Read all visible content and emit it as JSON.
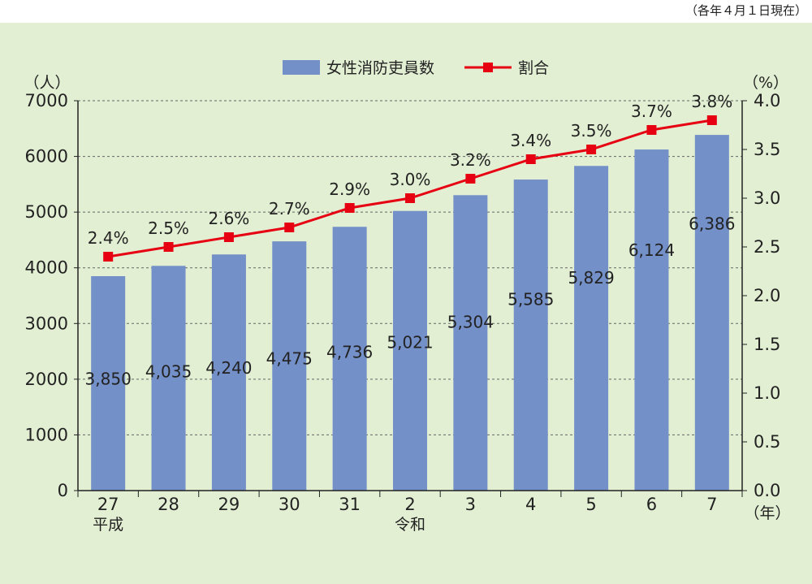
{
  "note": "（各年４月１日現在）",
  "chart_data": {
    "type": "bar",
    "categories": [
      "27",
      "28",
      "29",
      "30",
      "31",
      "2",
      "3",
      "4",
      "5",
      "6",
      "7"
    ],
    "category_sublabels": [
      "平成",
      "",
      "",
      "",
      "",
      "令和",
      "",
      "",
      "",
      "",
      ""
    ],
    "series": [
      {
        "name": "女性消防吏員数",
        "type": "bar",
        "axis": "left",
        "color": "#7490c8",
        "values": [
          3850,
          4035,
          4240,
          4475,
          4736,
          5021,
          5304,
          5585,
          5829,
          6124,
          6386
        ],
        "labels": [
          "3,850",
          "4,035",
          "4,240",
          "4,475",
          "4,736",
          "5,021",
          "5,304",
          "5,585",
          "5,829",
          "6,124",
          "6,386"
        ]
      },
      {
        "name": "割合",
        "type": "line",
        "axis": "right",
        "color": "#e60012",
        "values": [
          2.4,
          2.5,
          2.6,
          2.7,
          2.9,
          3.0,
          3.2,
          3.4,
          3.5,
          3.7,
          3.8
        ],
        "labels": [
          "2.4%",
          "2.5%",
          "2.6%",
          "2.7%",
          "2.9%",
          "3.0%",
          "3.2%",
          "3.4%",
          "3.5%",
          "3.7%",
          "3.8%"
        ]
      }
    ],
    "y_left": {
      "unit": "（人）",
      "ylim": [
        0,
        7000
      ],
      "ticks": [
        "0",
        "1000",
        "2000",
        "3000",
        "4000",
        "5000",
        "6000",
        "7000"
      ]
    },
    "y_right": {
      "unit": "（%）",
      "ylim": [
        0,
        4.0
      ],
      "ticks": [
        "0.0",
        "0.5",
        "1.0",
        "1.5",
        "2.0",
        "2.5",
        "3.0",
        "3.5",
        "4.0"
      ]
    },
    "x_unit": "（年）",
    "legend_position": "top-center",
    "grid": "horizontal-dashed"
  }
}
